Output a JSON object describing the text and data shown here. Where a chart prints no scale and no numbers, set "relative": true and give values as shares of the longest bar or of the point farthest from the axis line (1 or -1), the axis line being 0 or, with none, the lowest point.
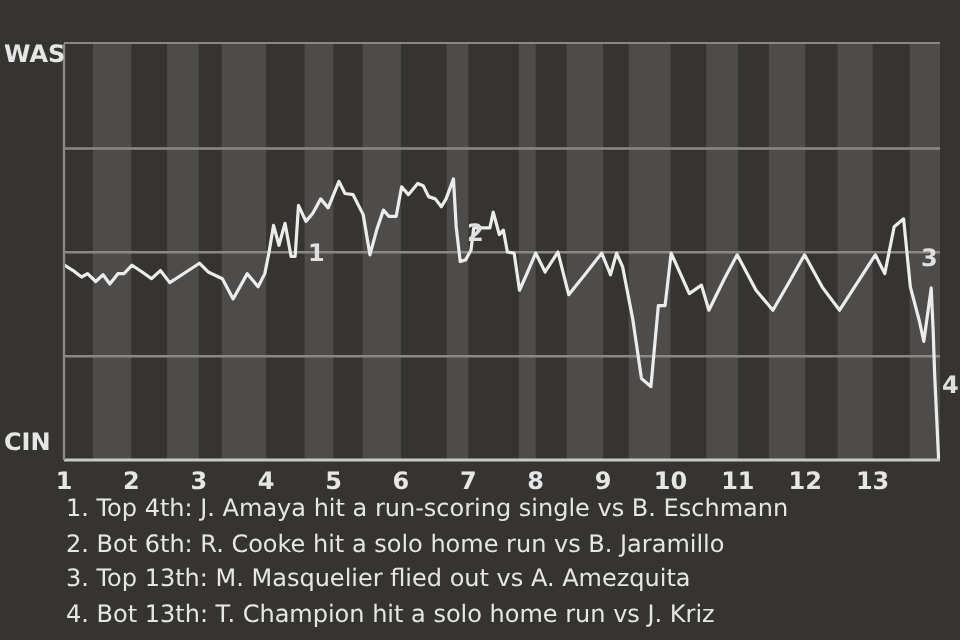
{
  "chart_data": {
    "type": "line",
    "marker": "none",
    "line_style": "solid",
    "relative": true,
    "ref_lines": [
      {
        "axis": "y",
        "value": 0.369,
        "color": "#8a8886"
      },
      {
        "axis": "y",
        "value": 0.739,
        "color": "#8a8886"
      },
      {
        "axis": "y",
        "value": 1.108,
        "color": "#8a8886"
      }
    ],
    "x": [
      1,
      1.13,
      1.26,
      1.35,
      1.47,
      1.58,
      1.68,
      1.8,
      1.89,
      2.01,
      2.16,
      2.3,
      2.43,
      2.57,
      2.75,
      3.01,
      3.14,
      3.35,
      3.51,
      3.72,
      3.88,
      3.98,
      4.04,
      4.11,
      4.19,
      4.28,
      4.37,
      4.43,
      4.48,
      4.59,
      4.69,
      4.81,
      4.92,
      5.08,
      5.17,
      5.29,
      5.44,
      5.54,
      5.64,
      5.74,
      5.82,
      5.93,
      6.01,
      6.11,
      6.25,
      6.33,
      6.41,
      6.51,
      6.6,
      6.67,
      6.78,
      6.82,
      6.88,
      6.96,
      7.04,
      7.08,
      7.32,
      7.37,
      7.46,
      7.52,
      7.58,
      7.68,
      7.76,
      7.87,
      8,
      8.14,
      8.33,
      8.49,
      8.74,
      8.98,
      9.11,
      9.2,
      9.29,
      9.44,
      9.57,
      9.71,
      9.82,
      9.92,
      10.01,
      10.28,
      10.46,
      10.57,
      10.8,
      10.99,
      11.27,
      11.52,
      11.75,
      11.99,
      12.25,
      12.51,
      12.75,
      13.04,
      13.18,
      13.32,
      13.46,
      13.56,
      13.69,
      13.76,
      13.87,
      13.9,
      13.92,
      13.98
    ],
    "series": [
      {
        "color": "#ececec",
        "values": [
          0.694,
          0.675,
          0.651,
          0.663,
          0.635,
          0.659,
          0.626,
          0.663,
          0.663,
          0.693,
          0.669,
          0.645,
          0.674,
          0.631,
          0.659,
          0.7,
          0.669,
          0.645,
          0.573,
          0.663,
          0.616,
          0.663,
          0.736,
          0.835,
          0.764,
          0.842,
          0.724,
          0.724,
          0.906,
          0.849,
          0.877,
          0.929,
          0.897,
          0.991,
          0.948,
          0.944,
          0.873,
          0.73,
          0.818,
          0.889,
          0.867,
          0.867,
          0.972,
          0.944,
          0.984,
          0.976,
          0.937,
          0.929,
          0.901,
          0.929,
          1,
          0.83,
          0.706,
          0.712,
          0.747,
          0.826,
          0.826,
          0.882,
          0.802,
          0.818,
          0.74,
          0.736,
          0.604,
          0.663,
          0.736,
          0.669,
          0.74,
          0.588,
          0.663,
          0.736,
          0.659,
          0.736,
          0.687,
          0.502,
          0.29,
          0.261,
          0.549,
          0.549,
          0.736,
          0.592,
          0.622,
          0.533,
          0.645,
          0.73,
          0.604,
          0.533,
          0.628,
          0.73,
          0.616,
          0.533,
          0.622,
          0.73,
          0.663,
          0.83,
          0.858,
          0.616,
          0.498,
          0.422,
          0.612,
          0.45,
          0.309,
          0
        ]
      }
    ],
    "xlim": [
      1,
      14
    ],
    "xticks": [
      1,
      2,
      3,
      4,
      5,
      6,
      7,
      8,
      9,
      10,
      11,
      12,
      13
    ],
    "bands": [
      {
        "axis": "x",
        "from": 1.43,
        "to": 2,
        "color": "#4d4c4a"
      },
      {
        "axis": "x",
        "from": 2.53,
        "to": 3,
        "color": "#4d4c4a"
      },
      {
        "axis": "x",
        "from": 3.34,
        "to": 4,
        "color": "#4d4c4a"
      },
      {
        "axis": "x",
        "from": 4.57,
        "to": 5,
        "color": "#4d4c4a"
      },
      {
        "axis": "x",
        "from": 5.43,
        "to": 6,
        "color": "#4d4c4a"
      },
      {
        "axis": "x",
        "from": 6.68,
        "to": 7,
        "color": "#4d4c4a"
      },
      {
        "axis": "x",
        "from": 7.75,
        "to": 8,
        "color": "#4d4c4a"
      },
      {
        "axis": "x",
        "from": 8.46,
        "to": 9,
        "color": "#4d4c4a"
      },
      {
        "axis": "x",
        "from": 9.38,
        "to": 10,
        "color": "#4d4c4a"
      },
      {
        "axis": "x",
        "from": 10.53,
        "to": 11,
        "color": "#4d4c4a"
      },
      {
        "axis": "x",
        "from": 11.46,
        "to": 12,
        "color": "#4d4c4a"
      },
      {
        "axis": "x",
        "from": 12.48,
        "to": 13,
        "color": "#4d4c4a"
      },
      {
        "axis": "x",
        "from": 13.55,
        "to": 14,
        "color": "#4d4c4a"
      }
    ],
    "annotations": [
      "WAS",
      "CIN",
      {
        "text": "1",
        "x": 4.59,
        "y": 0.74
      },
      {
        "text": "2",
        "x": 6.95,
        "y": 0.81
      },
      {
        "text": "3",
        "x": 13.69,
        "y": 0.72
      },
      {
        "text": "4",
        "x": 14,
        "y": 0.27
      },
      "1. Top 4th: J. Amaya hit a run-scoring single vs B. Eschmann",
      "2. Bot 6th: R. Cooke hit a solo home run vs B. Jaramillo",
      "3. Top 13th: M. Masquelier flied out vs A. Amezquita",
      "4. Bot 13th: T. Champion hit a solo home run vs J. Kriz"
    ]
  }
}
